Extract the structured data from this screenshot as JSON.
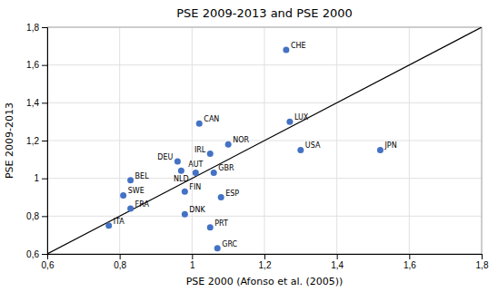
{
  "chart_data": {
    "type": "scatter",
    "title": "PSE 2009-2013 and PSE 2000",
    "xlabel": "PSE 2000 (Afonso et al. (2005))",
    "ylabel": "PSE 2009-2013",
    "annotations": [
      "CHE",
      "LUX",
      "CAN",
      "NOR",
      "IRL",
      "DEU",
      "NLD",
      "AUT",
      "GBR",
      "BEL",
      "FIN",
      "SWE",
      "ESP",
      "FRA",
      "DNK",
      "ITA",
      "PRT",
      "GRC",
      "USA",
      "JPN"
    ],
    "x": [
      1.26,
      1.27,
      1.02,
      1.1,
      1.05,
      0.96,
      0.97,
      1.01,
      1.06,
      0.83,
      0.98,
      0.81,
      1.08,
      0.83,
      0.98,
      0.77,
      1.05,
      1.07,
      1.3,
      1.52
    ],
    "values": [
      1.68,
      1.3,
      1.29,
      1.18,
      1.13,
      1.09,
      1.04,
      1.03,
      1.03,
      0.99,
      0.93,
      0.91,
      0.9,
      0.84,
      0.81,
      0.75,
      0.74,
      0.63,
      1.15,
      1.15
    ],
    "color": "#4472C4",
    "xlim": [
      0.6,
      1.8
    ],
    "ylim": [
      0.6,
      1.8
    ],
    "xticks": [
      {
        "value": 0.6,
        "label": "0,6"
      },
      {
        "value": 0.8,
        "label": "0,8"
      },
      1,
      {
        "value": 1.2,
        "label": "1,2"
      },
      {
        "value": 1.4,
        "label": "1,4"
      },
      {
        "value": 1.6,
        "label": "1,6"
      },
      {
        "value": 1.8,
        "label": "1,8"
      }
    ],
    "yticks": [
      {
        "value": 0.6,
        "label": "0,6"
      },
      {
        "value": 0.8,
        "label": "0,8"
      },
      1,
      {
        "value": 1.2,
        "label": "1,2"
      },
      {
        "value": 1.4,
        "label": "1,4"
      },
      {
        "value": 1.6,
        "label": "1,6"
      },
      {
        "value": 1.8,
        "label": "1,8"
      }
    ],
    "grid": true
  }
}
